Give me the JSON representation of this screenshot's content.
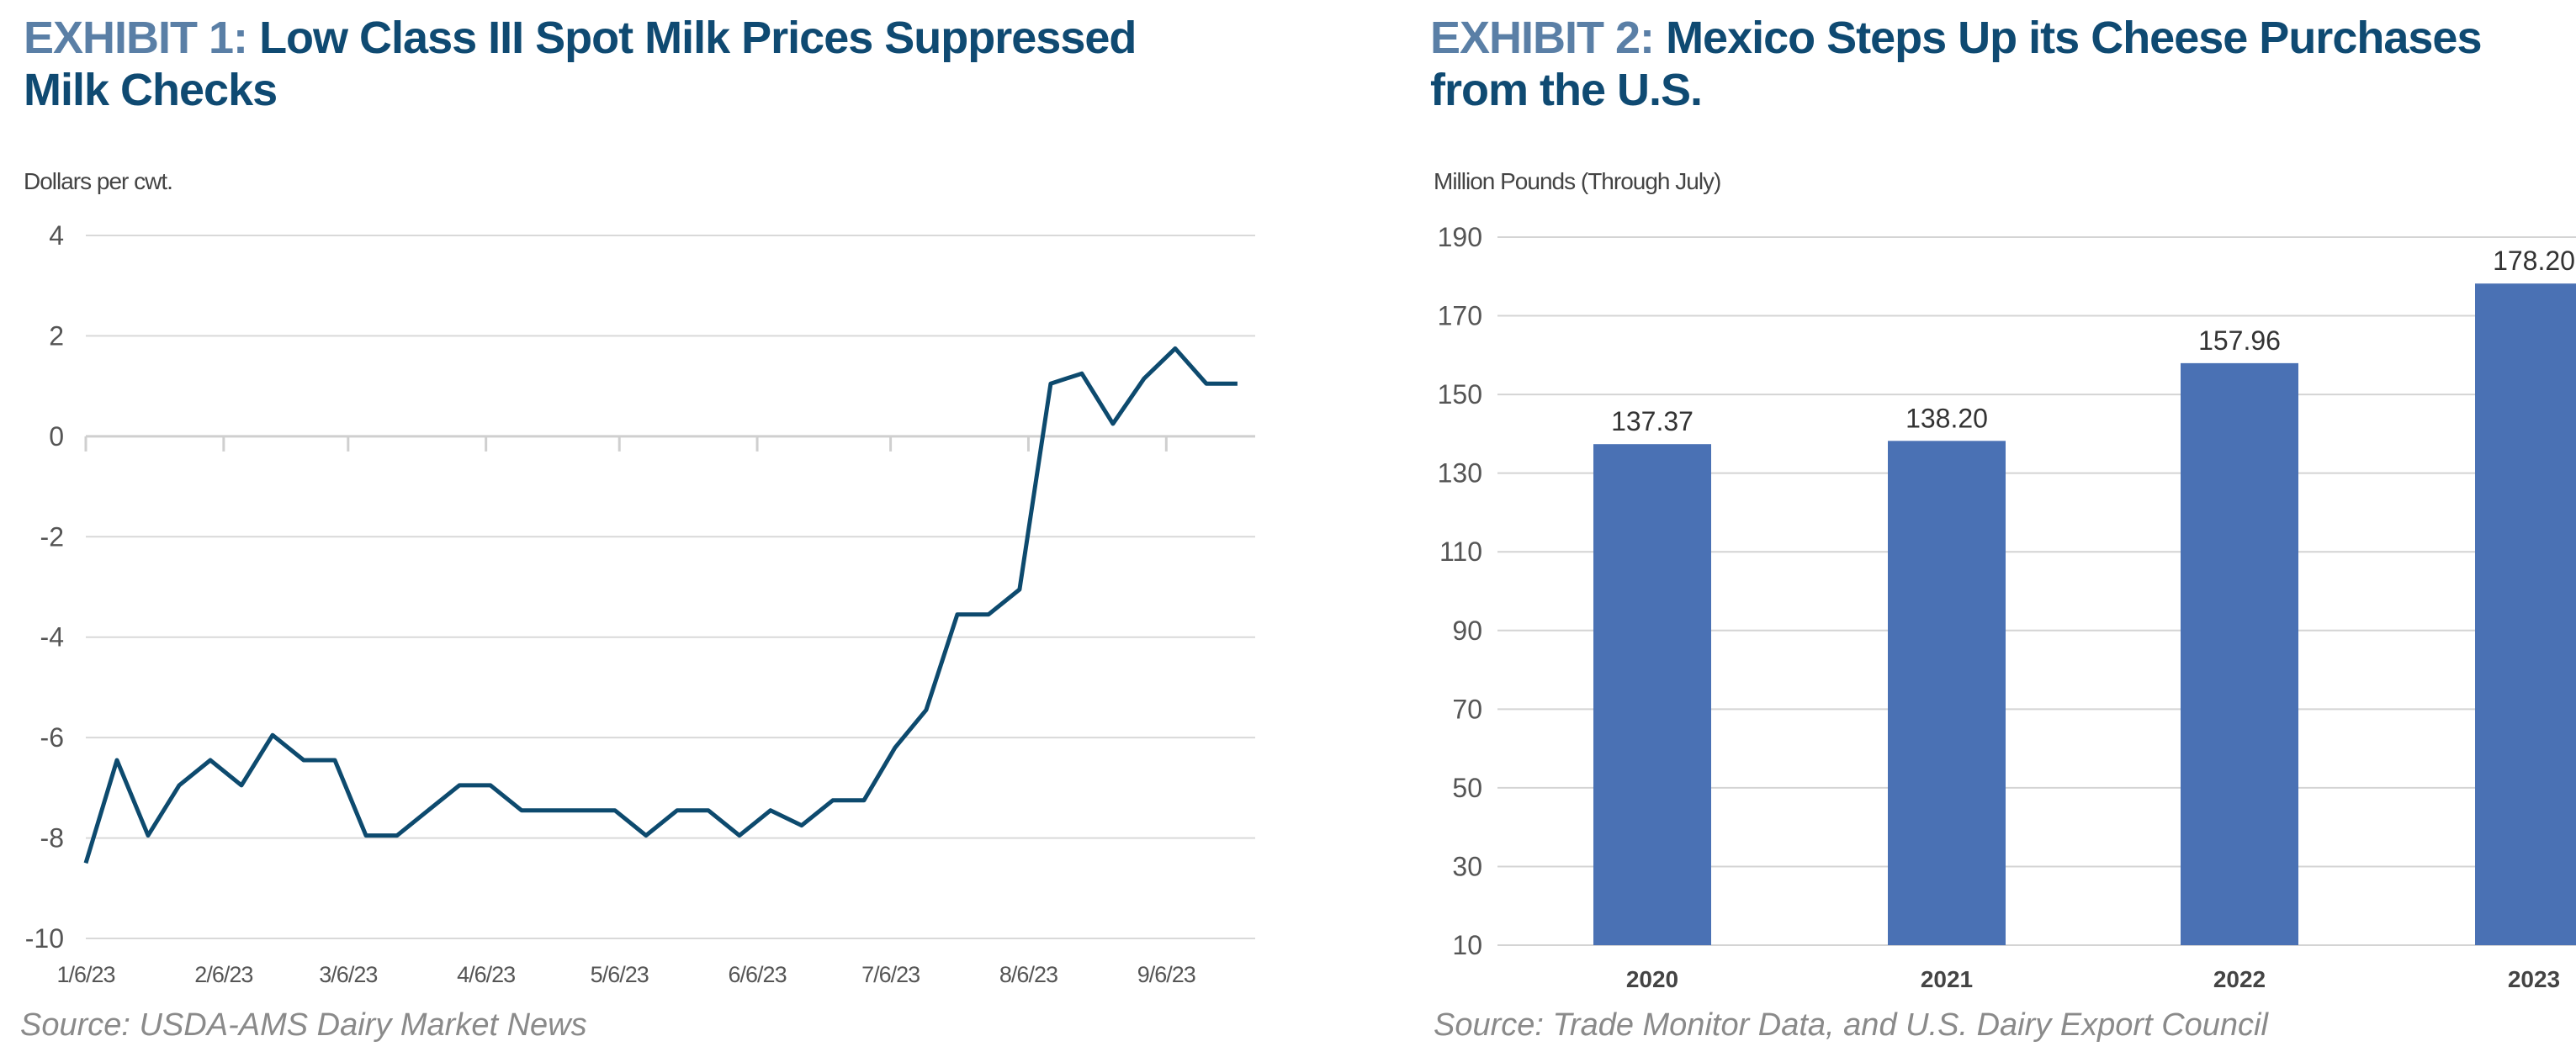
{
  "chart_data": [
    {
      "type": "line",
      "title_prefix": "EXHIBIT 1:",
      "title": "Low Class III Spot Milk Prices Suppressed Milk Checks",
      "ylabel": "Dollars per cwt.",
      "xlabel": "",
      "source": "Source: USDA-AMS Dairy Market News",
      "ylim": [
        -10,
        4
      ],
      "yticks": [
        4,
        2,
        0,
        -2,
        -4,
        -6,
        -8,
        -10
      ],
      "xlim": [
        "2023-01-06",
        "2023-09-26"
      ],
      "xtick_dates": [
        "2023-01-06",
        "2023-02-06",
        "2023-03-06",
        "2023-04-06",
        "2023-05-06",
        "2023-06-06",
        "2023-07-06",
        "2023-08-06",
        "2023-09-06"
      ],
      "xtick_labels": [
        "1/6/23",
        "2/6/23",
        "3/6/23",
        "4/6/23",
        "5/6/23",
        "6/6/23",
        "7/6/23",
        "8/6/23",
        "9/6/23"
      ],
      "grid": true,
      "line_color": "#0d4a6e",
      "x": [
        "2023-01-06",
        "2023-01-13",
        "2023-01-20",
        "2023-01-27",
        "2023-02-03",
        "2023-02-10",
        "2023-02-17",
        "2023-02-24",
        "2023-03-03",
        "2023-03-10",
        "2023-03-17",
        "2023-03-24",
        "2023-03-31",
        "2023-04-07",
        "2023-04-14",
        "2023-04-21",
        "2023-04-28",
        "2023-05-05",
        "2023-05-12",
        "2023-05-19",
        "2023-05-26",
        "2023-06-02",
        "2023-06-09",
        "2023-06-16",
        "2023-06-23",
        "2023-06-30",
        "2023-07-07",
        "2023-07-14",
        "2023-07-21",
        "2023-07-28",
        "2023-08-04",
        "2023-08-11",
        "2023-08-18",
        "2023-08-25",
        "2023-09-01",
        "2023-09-08",
        "2023-09-15",
        "2023-09-22"
      ],
      "y": [
        -8.5,
        -6.45,
        -7.95,
        -6.95,
        -6.45,
        -6.95,
        -5.95,
        -6.45,
        -6.45,
        -7.95,
        -7.95,
        -7.45,
        -6.95,
        -6.95,
        -7.45,
        -7.45,
        -7.45,
        -7.45,
        -7.95,
        -7.45,
        -7.45,
        -7.95,
        -7.45,
        -7.75,
        -7.25,
        -7.25,
        -6.2,
        -5.45,
        -3.55,
        -3.55,
        -3.05,
        1.05,
        1.25,
        0.25,
        1.15,
        1.75,
        1.05,
        1.05
      ]
    },
    {
      "type": "bar",
      "title_prefix": "EXHIBIT 2:",
      "title": "Mexico Steps Up its Cheese Purchases from the U.S.",
      "ylabel": "Million Pounds (Through July)",
      "xlabel": "",
      "source": "Source: Trade Monitor Data, and U.S. Dairy Export Council",
      "ylim": [
        10,
        190
      ],
      "yticks": [
        190,
        170,
        150,
        130,
        110,
        90,
        70,
        50,
        30,
        10
      ],
      "grid": true,
      "bar_color": "#4a71b4",
      "categories": [
        "2020",
        "2021",
        "2022",
        "2023"
      ],
      "values": [
        137.37,
        138.2,
        157.96,
        178.2
      ],
      "data_labels": [
        "137.37",
        "138.20",
        "157.96",
        "178.20"
      ]
    }
  ]
}
